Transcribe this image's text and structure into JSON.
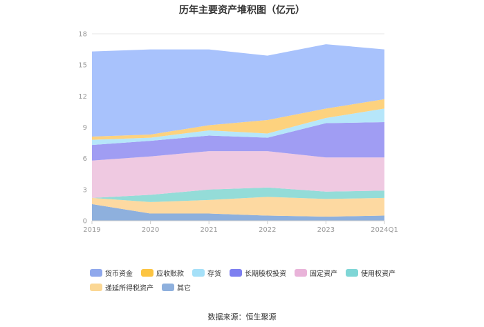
{
  "chart_data": {
    "type": "area",
    "stacked": true,
    "title": "历年主要资产堆积图（亿元）",
    "categories": [
      "2019",
      "2020",
      "2021",
      "2022",
      "2023",
      "2024Q1"
    ],
    "ylim": [
      0,
      18
    ],
    "yticks": [
      "0",
      "3",
      "6",
      "9",
      "12",
      "15",
      "18"
    ],
    "series": [
      {
        "name": "其它",
        "color": "#8eb0dd",
        "values": [
          1.6,
          0.7,
          0.7,
          0.5,
          0.4,
          0.5
        ]
      },
      {
        "name": "递延所得税资产",
        "color": "#fdd9a1",
        "values": [
          0.6,
          1.1,
          1.3,
          1.8,
          1.7,
          1.7
        ]
      },
      {
        "name": "使用权资产",
        "color": "#94dcd8",
        "values": [
          0.0,
          0.7,
          1.0,
          0.9,
          0.7,
          0.7
        ]
      },
      {
        "name": "固定资产",
        "color": "#efc9e1",
        "values": [
          3.6,
          3.7,
          3.7,
          3.5,
          3.3,
          3.2
        ]
      },
      {
        "name": "长期股权投资",
        "color": "#a09df3",
        "values": [
          1.5,
          1.5,
          1.5,
          1.3,
          3.3,
          3.4
        ]
      },
      {
        "name": "存货",
        "color": "#b6e6fa",
        "values": [
          0.5,
          0.3,
          0.5,
          0.4,
          0.5,
          1.3
        ]
      },
      {
        "name": "应收账款",
        "color": "#fdd27e",
        "values": [
          0.3,
          0.3,
          0.5,
          1.3,
          0.9,
          0.9
        ]
      },
      {
        "name": "货币资金",
        "color": "#a8c2fc",
        "values": [
          8.2,
          8.2,
          7.3,
          6.2,
          6.2,
          4.8
        ]
      }
    ]
  },
  "legend": [
    {
      "name": "货币资金",
      "color": "#8fa8ec"
    },
    {
      "name": "应收账款",
      "color": "#fcc441"
    },
    {
      "name": "存货",
      "color": "#a5e0f8"
    },
    {
      "name": "长期股权投资",
      "color": "#7d7ff0"
    },
    {
      "name": "固定资产",
      "color": "#e9b3d9"
    },
    {
      "name": "使用权资产",
      "color": "#7fd6d6"
    },
    {
      "name": "递延所得税资产",
      "color": "#fbd794"
    },
    {
      "name": "其它",
      "color": "#8eb0dd"
    }
  ],
  "source": "数据来源：恒生聚源"
}
